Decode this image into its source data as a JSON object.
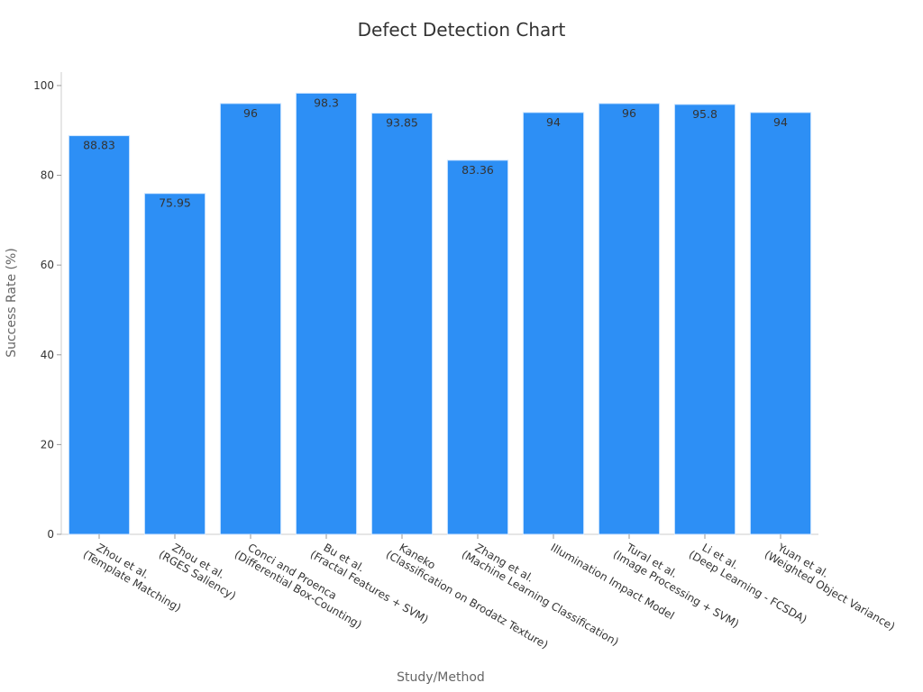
{
  "chart_data": {
    "type": "bar",
    "title": "Defect Detection Chart",
    "xlabel": "Study/Method",
    "ylabel": "Success Rate (%)",
    "ylim": [
      0,
      103
    ],
    "yticks": [
      0,
      20,
      40,
      60,
      80,
      100
    ],
    "grid": false,
    "bar_color": "#2d8ff5",
    "categories": [
      [
        "Zhou et al.",
        "(Template Matching)"
      ],
      [
        "Zhou et al.",
        "(RGES Saliency)"
      ],
      [
        "Conci and Proenca",
        "(Differential Box-Counting)"
      ],
      [
        "Bu et al.",
        "(Fractal Features + SVM)"
      ],
      [
        "Kaneko",
        "(Classification on Brodatz Texture)"
      ],
      [
        "Zhang et al.",
        "(Machine Learning Classification)"
      ],
      [
        "Illumination Impact Model"
      ],
      [
        "Tural et al.",
        "(Image Processing + SVM)"
      ],
      [
        "Li et al.",
        "(Deep Learning - FCSDA)"
      ],
      [
        "Yuan et al.",
        "(Weighted Object Variance)"
      ]
    ],
    "values": [
      88.83,
      75.95,
      96,
      98.3,
      93.85,
      83.36,
      94,
      96,
      95.8,
      94
    ],
    "value_labels": [
      "88.83",
      "75.95",
      "96",
      "98.3",
      "93.85",
      "83.36",
      "94",
      "96",
      "95.8",
      "94"
    ]
  }
}
